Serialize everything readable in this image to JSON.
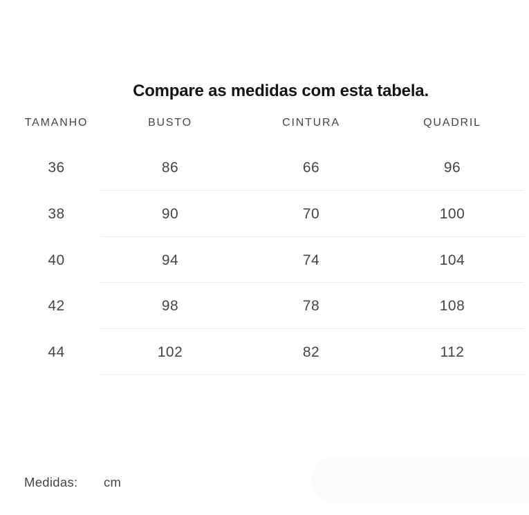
{
  "title": "Compare as medidas com esta tabela.",
  "table": {
    "headers": [
      "TAMANHO",
      "BUSTO",
      "CINTURA",
      "QUADRIL"
    ],
    "rows": [
      [
        "36",
        "86",
        "66",
        "96"
      ],
      [
        "38",
        "90",
        "70",
        "100"
      ],
      [
        "40",
        "94",
        "74",
        "104"
      ],
      [
        "42",
        "98",
        "78",
        "108"
      ],
      [
        "44",
        "102",
        "82",
        "112"
      ]
    ]
  },
  "footer": {
    "label": "Medidas:",
    "unit": "cm"
  },
  "colors": {
    "background": "#ffffff",
    "title": "#141414",
    "text": "#42464a",
    "divider": "#ededed",
    "pill": "#fbfbfb"
  }
}
